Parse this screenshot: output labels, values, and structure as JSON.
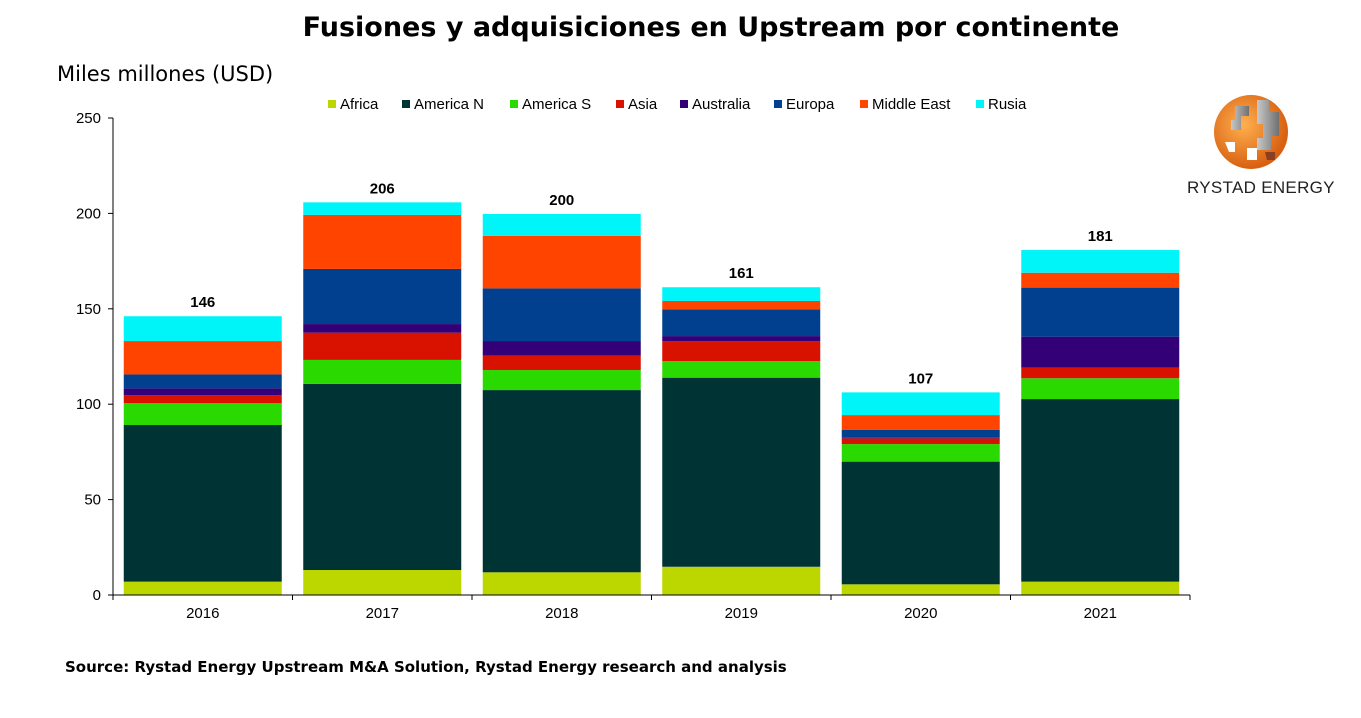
{
  "chart_data": {
    "type": "bar",
    "stacked": true,
    "title": "Fusiones y adquisiciones en Upstream por continente",
    "ylabel": "Miles millones (USD)",
    "xlabel": "",
    "ylim": [
      0,
      250
    ],
    "yticks": [
      0,
      50,
      100,
      150,
      200,
      250
    ],
    "grid": false,
    "legend_position": "top",
    "categories": [
      "2016",
      "2017",
      "2018",
      "2019",
      "2020",
      "2021"
    ],
    "totals": [
      146,
      206,
      200,
      161,
      107,
      181
    ],
    "series": [
      {
        "name": "Africa",
        "color": "#bcd600",
        "values": [
          7.0,
          13.1,
          11.9,
          14.8,
          5.6,
          7.0
        ]
      },
      {
        "name": "America N",
        "color": "#003333",
        "values": [
          82.1,
          97.5,
          95.5,
          99.1,
          64.3,
          95.7
        ]
      },
      {
        "name": "America S",
        "color": "#2ad900",
        "values": [
          11.4,
          12.6,
          10.5,
          8.7,
          9.2,
          10.9
        ]
      },
      {
        "name": "Asia",
        "color": "#d91200",
        "values": [
          4.3,
          14.3,
          7.5,
          10.5,
          3.0,
          5.5
        ]
      },
      {
        "name": "Australia",
        "color": "#330077",
        "values": [
          3.5,
          4.5,
          7.7,
          2.6,
          0.3,
          16.3
        ]
      },
      {
        "name": "Europa",
        "color": "#00408f",
        "values": [
          7.3,
          28.9,
          27.6,
          14.0,
          4.1,
          25.7
        ]
      },
      {
        "name": "Middle East",
        "color": "#ff4400",
        "values": [
          17.5,
          28.3,
          27.5,
          4.4,
          7.8,
          7.8
        ]
      },
      {
        "name": "Rusia",
        "color": "#00f5f8",
        "values": [
          13.0,
          6.6,
          11.5,
          7.2,
          11.9,
          11.9
        ]
      }
    ]
  },
  "source": "Source: Rystad Energy Upstream M&A Solution,  Rystad Energy research and analysis",
  "logo": {
    "text": "RYSTAD ENERGY",
    "colors": [
      "#f08020",
      "#9a9a9a"
    ]
  }
}
